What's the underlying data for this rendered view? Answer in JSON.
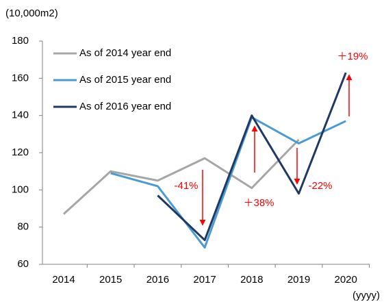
{
  "chart_data": {
    "type": "line",
    "y_label": "(10,000m2)",
    "x_label": "(yyyy)",
    "categories": [
      "2014",
      "2015",
      "2016",
      "2017",
      "2018",
      "2019",
      "2020"
    ],
    "series": [
      {
        "name": "As of 2014 year end",
        "color": "#a6a6a6",
        "values": [
          87,
          110,
          105,
          117,
          101,
          127,
          null
        ]
      },
      {
        "name": "As of 2015 year end",
        "color": "#4a9bd4",
        "values": [
          null,
          109,
          102,
          69,
          139,
          125,
          137
        ]
      },
      {
        "name": "As of 2016 year end",
        "color": "#1f3864",
        "values": [
          null,
          null,
          97,
          73,
          140,
          98,
          163
        ]
      }
    ],
    "ylim": [
      60,
      180
    ],
    "yticks": [
      60,
      80,
      100,
      120,
      140,
      160,
      180
    ],
    "annotations": [
      "-41%",
      "＋38%",
      "-22%",
      "＋19%"
    ],
    "annotation_color": "#ff0000",
    "grid": false
  }
}
